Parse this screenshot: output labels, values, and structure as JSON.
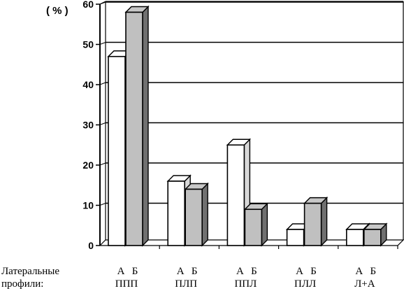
{
  "chart_data": {
    "type": "bar",
    "y_unit_label": "( % )",
    "ylim": [
      0,
      60
    ],
    "yticks": [
      "0",
      "10",
      "20",
      "30",
      "40",
      "50",
      "60"
    ],
    "grid": true,
    "series": [
      {
        "name": "А",
        "color": "#ffffff",
        "values": [
          47,
          16,
          25,
          4,
          4
        ]
      },
      {
        "name": "Б",
        "color": "#c0c0c0",
        "values": [
          58,
          14,
          9,
          10.5,
          4
        ]
      }
    ],
    "category_labels": [
      "ППП",
      "ПЛП",
      "ППЛ",
      "ПЛЛ",
      "Л+А"
    ],
    "row_label_line1": "Латеральные",
    "row_label_line2": "профили:"
  }
}
